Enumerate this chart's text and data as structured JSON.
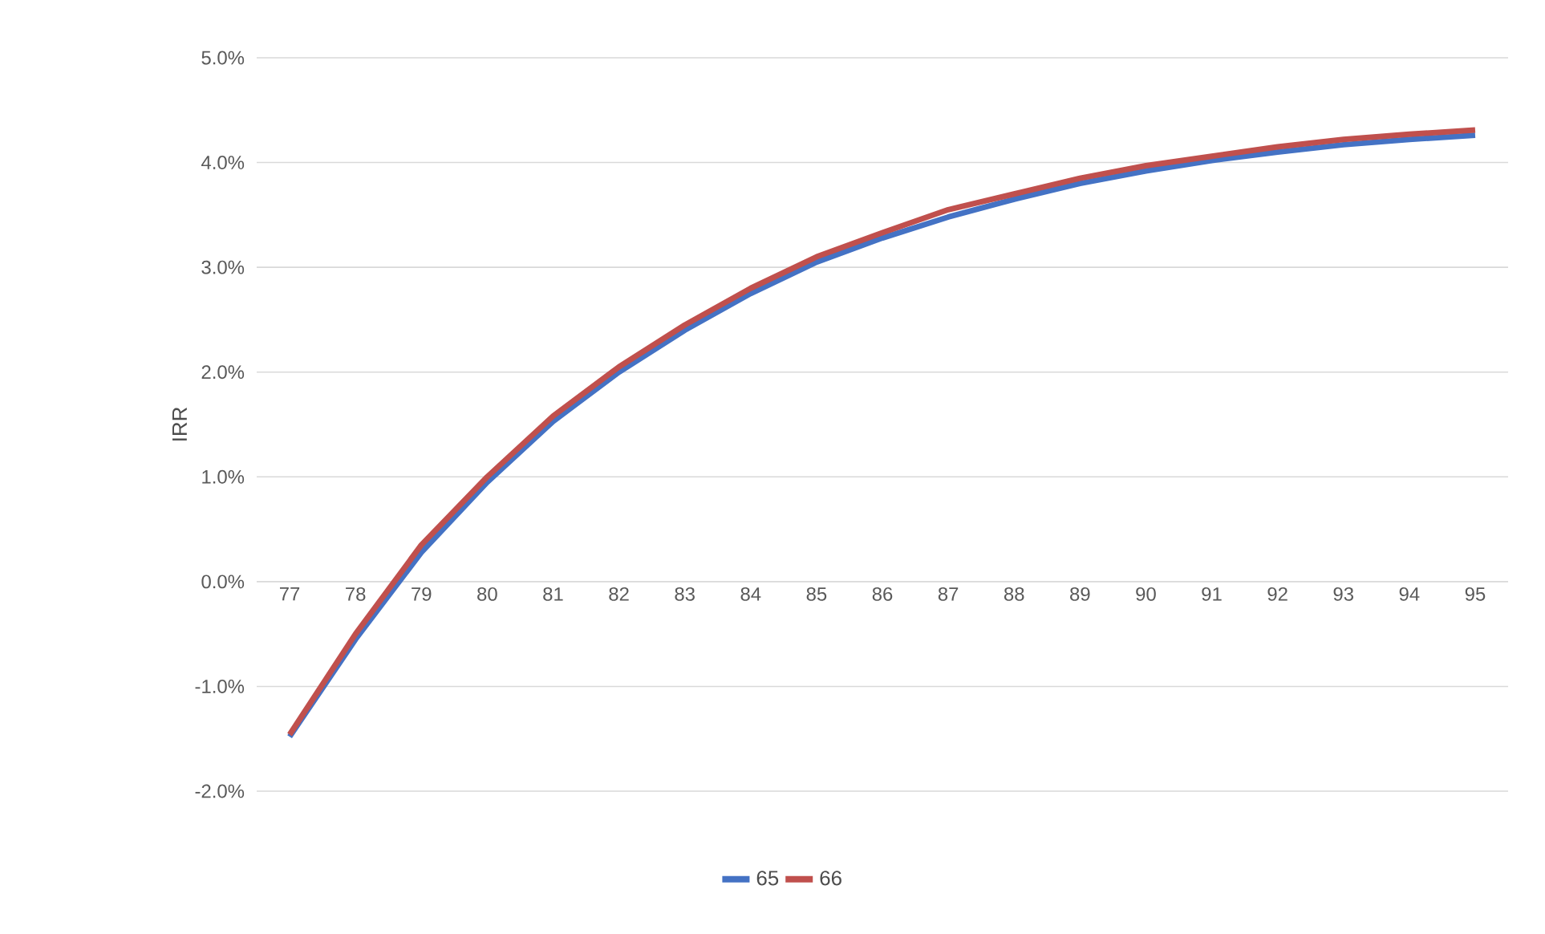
{
  "chart_data": {
    "type": "line",
    "ylabel": "IRR",
    "categories": [
      "77",
      "78",
      "79",
      "80",
      "81",
      "82",
      "83",
      "84",
      "85",
      "86",
      "87",
      "88",
      "89",
      "90",
      "91",
      "92",
      "93",
      "94",
      "95"
    ],
    "series": [
      {
        "name": "65",
        "color": "#4472c4",
        "values": [
          -1.48,
          -0.55,
          0.28,
          0.95,
          1.53,
          2.0,
          2.4,
          2.75,
          3.05,
          3.28,
          3.48,
          3.65,
          3.8,
          3.92,
          4.02,
          4.1,
          4.17,
          4.22,
          4.26
        ]
      },
      {
        "name": "66",
        "color": "#c0504d",
        "values": [
          -1.46,
          -0.5,
          0.35,
          1.0,
          1.58,
          2.05,
          2.45,
          2.8,
          3.1,
          3.33,
          3.55,
          3.7,
          3.85,
          3.97,
          4.06,
          4.15,
          4.22,
          4.27,
          4.31
        ]
      }
    ],
    "ylim": [
      -2,
      5
    ],
    "yticks": [
      {
        "value": -2,
        "label": "-2.0%"
      },
      {
        "value": -1,
        "label": "-1.0%"
      },
      {
        "value": 0,
        "label": "0.0%"
      },
      {
        "value": 1,
        "label": "1.0%"
      },
      {
        "value": 2,
        "label": "2.0%"
      },
      {
        "value": 3,
        "label": "3.0%"
      },
      {
        "value": 4,
        "label": "4.0%"
      },
      {
        "value": 5,
        "label": "5.0%"
      }
    ],
    "grid": "y",
    "legend": "bottom",
    "marker": "none",
    "line_style": "solid"
  }
}
